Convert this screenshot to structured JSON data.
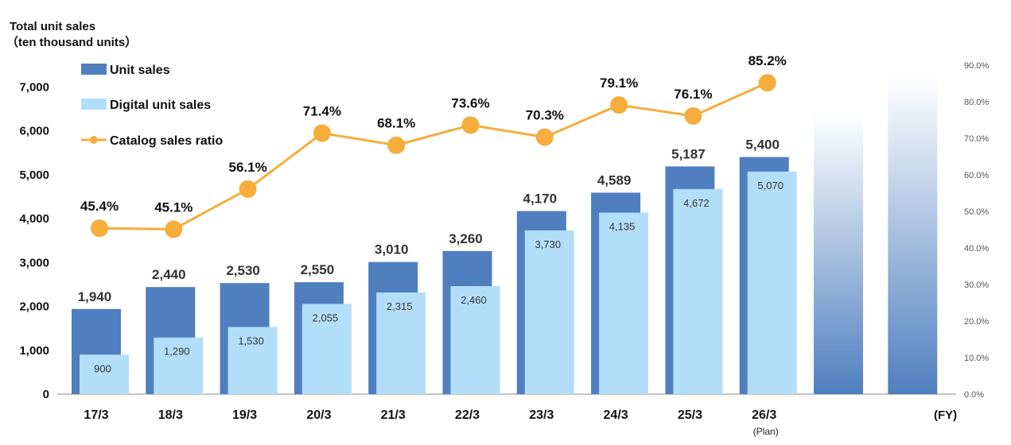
{
  "chart_data": {
    "type": "bar",
    "title": "",
    "ylabel_lines": [
      "Total unit sales",
      "（ten thousand units）"
    ],
    "xlabel": "(FY)",
    "categories": [
      "17/3",
      "18/3",
      "19/3",
      "20/3",
      "21/3",
      "22/3",
      "23/3",
      "24/3",
      "25/3",
      "26/3"
    ],
    "category_notes": [
      "",
      "",
      "",
      "",
      "",
      "",
      "",
      "",
      "",
      "(Plan)"
    ],
    "ylim": [
      0,
      7000
    ],
    "yticks": [
      0,
      1000,
      2000,
      3000,
      4000,
      5000,
      6000,
      7000
    ],
    "ytick_labels": [
      "0",
      "1,000",
      "2,000",
      "3,000",
      "4,000",
      "5,000",
      "6,000",
      "7,000"
    ],
    "y2lim": [
      0,
      90
    ],
    "y2ticks": [
      0,
      10,
      20,
      30,
      40,
      50,
      60,
      70,
      80,
      90
    ],
    "y2tick_labels": [
      "0.0%",
      "10.0%",
      "20.0%",
      "30.0%",
      "40.0%",
      "50.0%",
      "60.0%",
      "70.0%",
      "80.0%",
      "90.0%"
    ],
    "legend_position": "top-left",
    "series": [
      {
        "name": "Unit sales",
        "kind": "bar",
        "color": "#4f7fbf",
        "values": [
          1940,
          2440,
          2530,
          2550,
          3010,
          3260,
          4170,
          4589,
          5187,
          5400
        ],
        "labels": [
          "1,940",
          "2,440",
          "2,530",
          "2,550",
          "3,010",
          "3,260",
          "4,170",
          "4,589",
          "5,187",
          "5,400"
        ]
      },
      {
        "name": "Digital unit sales",
        "kind": "bar",
        "color": "#b3defa",
        "values": [
          900,
          1290,
          1530,
          2055,
          2315,
          2460,
          3730,
          4135,
          4672,
          5070
        ],
        "labels": [
          "900",
          "1,290",
          "1,530",
          "2,055",
          "2,315",
          "2,460",
          "3,730",
          "4,135",
          "4,672",
          "5,070"
        ]
      },
      {
        "name": "Catalog sales ratio",
        "kind": "line",
        "axis": "right",
        "color": "#f6ad3c",
        "values": [
          45.4,
          45.1,
          56.1,
          71.4,
          68.1,
          73.6,
          70.3,
          79.1,
          76.1,
          85.2
        ],
        "labels": [
          "45.4%",
          "45.1%",
          "56.1%",
          "71.4%",
          "68.1%",
          "73.6%",
          "70.3%",
          "79.1%",
          "76.1%",
          "85.2%"
        ]
      }
    ],
    "decorative_gradient_columns": {
      "count": 2,
      "color_top": "#ffffff",
      "color_bottom": "#4f7fbf"
    }
  }
}
